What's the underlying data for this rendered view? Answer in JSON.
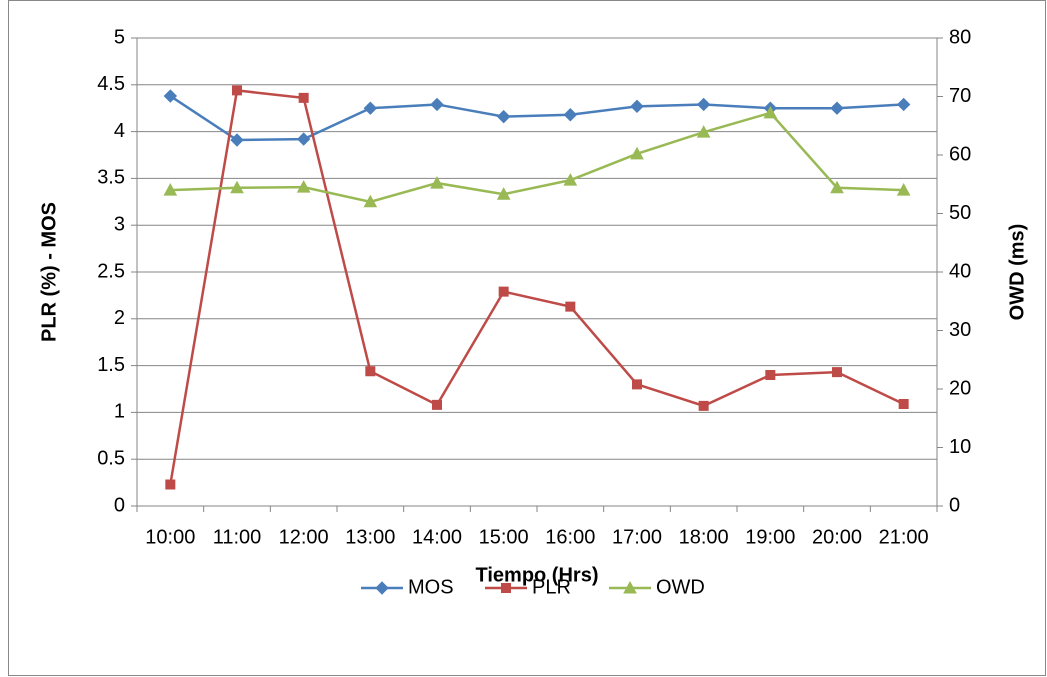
{
  "chart_data": {
    "type": "line",
    "xlabel": "Tiempo (Hrs)",
    "ylabel": "PLR (%) - MOS",
    "y2label": "OWD (ms)",
    "categories": [
      "10:00",
      "11:00",
      "12:00",
      "13:00",
      "14:00",
      "15:00",
      "16:00",
      "17:00",
      "18:00",
      "19:00",
      "20:00",
      "21:00"
    ],
    "series": [
      {
        "name": "MOS",
        "color": "#4a7ebb",
        "marker": "diamond",
        "values": [
          4.38,
          3.91,
          3.92,
          4.25,
          4.29,
          4.16,
          4.18,
          4.27,
          4.29,
          4.25,
          4.25,
          4.29
        ]
      },
      {
        "name": "PLR",
        "color": "#be4b48",
        "marker": "square",
        "values": [
          0.23,
          4.44,
          4.36,
          1.44,
          1.08,
          2.29,
          2.13,
          1.3,
          1.07,
          1.4,
          1.43,
          1.09
        ]
      },
      {
        "name": "OWD",
        "color": "#98b954",
        "marker": "triangle",
        "axis": "y2",
        "values": [
          54.0,
          54.4,
          54.5,
          52.0,
          55.2,
          53.3,
          55.7,
          60.2,
          63.9,
          67.2,
          54.4,
          54.0
        ]
      }
    ],
    "ylim": [
      0,
      5
    ],
    "yticks": [
      0,
      0.5,
      1,
      1.5,
      2,
      2.5,
      3,
      3.5,
      4,
      4.5,
      5
    ],
    "y2lim": [
      0,
      80
    ],
    "y2ticks": [
      0,
      10,
      20,
      30,
      40,
      50,
      60,
      70,
      80
    ],
    "grid": true,
    "legend": "bottom"
  }
}
